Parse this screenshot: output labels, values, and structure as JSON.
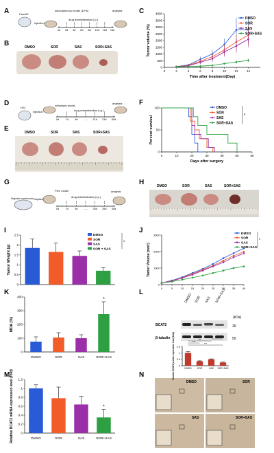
{
  "figure": {
    "panel_letters": [
      "A",
      "B",
      "C",
      "D",
      "E",
      "F",
      "G",
      "H",
      "I",
      "J",
      "K",
      "L",
      "M",
      "N"
    ],
    "groups": [
      "DMSO",
      "SOR",
      "SAS",
      "SOR+SAS"
    ],
    "colors": {
      "dmso": "#2a5bd7",
      "sor": "#f25c28",
      "sas": "#9a2fa8",
      "combo": "#2ea043",
      "tissue": "#c9877f",
      "tissue_dark": "#6e2f2a",
      "ruler": "#d8d3c7",
      "ihc": "#c7b49a"
    }
  },
  "panel_a": {
    "cell_label": "Panc02",
    "model_label": "subcutaneous model (10^6)",
    "step_label": "injection",
    "drug_label": "drug administration (i.p.)",
    "end_label": "analysis",
    "ticks": [
      "0d",
      "2d",
      "4d",
      "6d",
      "8d",
      "10d",
      "12d",
      "14d"
    ]
  },
  "panel_b": {
    "labels": [
      "DMSO",
      "SOR",
      "SAS",
      "SOR+SAS"
    ]
  },
  "panel_d": {
    "cell_label": "H22",
    "step_label": "injection",
    "model_label": "orthotopic model",
    "drug_label": "drug administration (i.g.)",
    "end_label": "analysis",
    "ticks": [
      "0d",
      "7d",
      "9d",
      "......",
      "21d",
      "23d",
      "60d"
    ]
  },
  "panel_e": {
    "labels": [
      "DMSO",
      "SOR",
      "SAS",
      "SOR+SAS"
    ]
  },
  "panel_g": {
    "cell_label": "Hepatic carcinoma",
    "step_label": "implant",
    "model_label": "PDX model",
    "drug_label": "drug administration (i.p.)",
    "end_label": "analysis",
    "ticks": [
      "0d",
      "7d",
      "9d",
      "......",
      "33d",
      "35d",
      "40d"
    ]
  },
  "panel_h": {
    "labels": [
      "DMSO",
      "SOR",
      "SAS",
      "SOR+SAS"
    ]
  },
  "panel_l": {
    "mw_unit": "(kDa)",
    "lane_labels": [
      "DMSO",
      "SOR",
      "SAS",
      "SOR+SAS"
    ],
    "band_labels": [
      "BCAT2",
      "β-tubulin"
    ],
    "mw_values": [
      "39",
      "50"
    ],
    "bar_ylabel": "Relative BCAT2 protein expression level (fold)",
    "sig_labels": [
      "***",
      "***",
      "***",
      "**"
    ]
  },
  "panel_n": {
    "labels": [
      "DMSO",
      "SOR",
      "SAS",
      "SOR+SAS"
    ]
  },
  "chart_data": [
    {
      "panel": "C",
      "type": "line",
      "xlabel": "Time after treatment(Day)",
      "ylabel": "Tumor volume (%)",
      "xlim": [
        0,
        16
      ],
      "ylim": [
        0,
        4000
      ],
      "xticks": [
        0,
        2,
        4,
        6,
        8,
        10,
        12,
        14
      ],
      "yticks": [
        0,
        500,
        1000,
        1500,
        2000,
        2500,
        3000,
        3500,
        4000
      ],
      "legend": "top-right",
      "x": [
        2,
        4,
        6,
        8,
        10,
        12,
        14
      ],
      "series": [
        {
          "name": "DMSO",
          "values": [
            60,
            180,
            600,
            1000,
            1700,
            2800,
            2800
          ]
        },
        {
          "name": "SOR",
          "values": [
            50,
            150,
            450,
            800,
            1300,
            1900,
            2400
          ]
        },
        {
          "name": "SAS",
          "values": [
            50,
            120,
            380,
            650,
            1150,
            1600,
            2100
          ]
        },
        {
          "name": "SOR+SAS",
          "values": [
            40,
            60,
            90,
            150,
            280,
            400,
            520
          ]
        }
      ],
      "errors": [
        [
          20,
          80,
          200,
          300,
          450,
          900,
          1000
        ],
        [
          20,
          70,
          180,
          280,
          400,
          600,
          700
        ],
        [
          20,
          60,
          150,
          250,
          350,
          500,
          600
        ],
        [
          10,
          20,
          40,
          60,
          80,
          100,
          120
        ]
      ]
    },
    {
      "panel": "F",
      "type": "line",
      "xlabel": "Days after surgery",
      "ylabel": "Percent survival",
      "xlim": [
        0,
        60
      ],
      "ylim": [
        0,
        100
      ],
      "xticks": [
        0,
        10,
        20,
        30,
        40,
        50,
        60
      ],
      "yticks": [
        0,
        50,
        100
      ],
      "legend": "top-right",
      "annotation": "*",
      "series": [
        {
          "name": "DMSO",
          "x": [
            0,
            16,
            18,
            20,
            22,
            24,
            28
          ],
          "values": [
            100,
            100,
            80,
            40,
            20,
            0,
            0
          ]
        },
        {
          "name": "SOR",
          "x": [
            0,
            17,
            19,
            22,
            25,
            30,
            34
          ],
          "values": [
            100,
            100,
            70,
            50,
            30,
            10,
            0
          ]
        },
        {
          "name": "SAS",
          "x": [
            0,
            17,
            20,
            22,
            26,
            31,
            35
          ],
          "values": [
            100,
            100,
            60,
            40,
            30,
            10,
            0
          ]
        },
        {
          "name": "SOR+SAS",
          "x": [
            0,
            18,
            21,
            24,
            30,
            44,
            50
          ],
          "values": [
            100,
            100,
            80,
            60,
            40,
            20,
            0
          ]
        }
      ]
    },
    {
      "panel": "I",
      "type": "bar",
      "categories": [
        "DMSO",
        "SOR",
        "SAS",
        "SOR + SAS"
      ],
      "values": [
        1.85,
        1.65,
        1.45,
        0.7
      ],
      "errors": [
        0.45,
        0.45,
        0.25,
        0.15
      ],
      "ylabel": "Tumor Weight (g)",
      "ylim": [
        0,
        2.5
      ],
      "yticks": [
        0.0,
        0.5,
        1.0,
        1.5,
        2.0,
        2.5
      ],
      "legend": "top-right",
      "annotation": "*"
    },
    {
      "panel": "J",
      "type": "line",
      "ylabel": "Tumor Volume (mm³)",
      "xlim": [
        0,
        40
      ],
      "ylim": [
        0,
        3000
      ],
      "xticks": [
        0,
        5,
        10,
        15,
        20,
        25,
        30,
        35,
        40
      ],
      "yticks": [
        0,
        1000,
        2000,
        3000
      ],
      "legend": "top-right",
      "annotation": "*",
      "x": [
        0,
        5,
        10,
        15,
        20,
        25,
        30,
        35,
        40
      ],
      "series": [
        {
          "name": "DMSO",
          "values": [
            100,
            250,
            450,
            700,
            950,
            1250,
            1600,
            1900,
            2200
          ]
        },
        {
          "name": "SOR",
          "values": [
            100,
            230,
            420,
            650,
            900,
            1150,
            1450,
            1750,
            2000
          ]
        },
        {
          "name": "SAS",
          "values": [
            100,
            220,
            400,
            600,
            850,
            1100,
            1350,
            1650,
            1900
          ]
        },
        {
          "name": "SOR+SAS",
          "values": [
            100,
            180,
            300,
            420,
            550,
            700,
            850,
            1000,
            1100
          ]
        }
      ]
    },
    {
      "panel": "K",
      "type": "bar",
      "categories": [
        "DMSO",
        "SOR",
        "SAS",
        "SOR+SAS"
      ],
      "values": [
        75,
        105,
        100,
        275
      ],
      "errors": [
        35,
        35,
        25,
        90
      ],
      "ylabel": "MDA (%)",
      "ylim": [
        0,
        400
      ],
      "yticks": [
        0,
        100,
        200,
        300,
        400
      ],
      "annotation": "*"
    },
    {
      "panel": "L",
      "type": "bar",
      "categories": [
        "DMSO",
        "SOR",
        "SAS",
        "SOR+SAS"
      ],
      "values": [
        1.0,
        0.35,
        0.5,
        0.25
      ],
      "errors": [
        0.1,
        0.03,
        0.03,
        0.03
      ],
      "ylabel": "Relative BCAT2 protein expression level (fold)",
      "ylim": [
        0,
        1.5
      ],
      "yticks": [
        0.0,
        0.5,
        1.0,
        1.5
      ]
    },
    {
      "panel": "M",
      "type": "bar",
      "categories": [
        "DMSO",
        "SOR",
        "SAS",
        "SOR+SAS"
      ],
      "values": [
        1.0,
        0.78,
        0.64,
        0.35
      ],
      "errors": [
        0.08,
        0.25,
        0.18,
        0.18
      ],
      "ylabel": "Relative BCAT2 mRNA expression level (fold)",
      "ylim": [
        0,
        1.2
      ],
      "yticks": [
        0.0,
        0.2,
        0.4,
        0.6,
        0.8,
        1.0,
        1.2
      ],
      "annotation": "*"
    }
  ]
}
